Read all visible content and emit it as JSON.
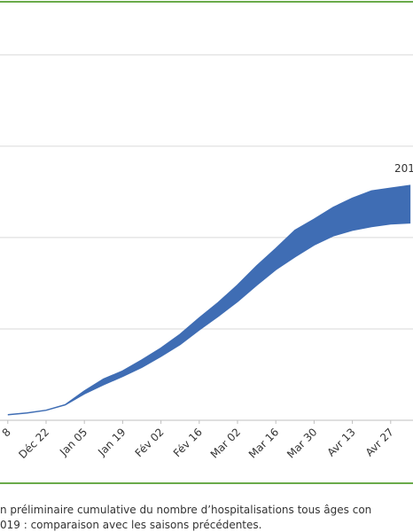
{
  "chart_data": {
    "type": "range_area",
    "color": "#3f6db4",
    "categories": [
      "8",
      null,
      "Déc 22",
      null,
      "Jan 05",
      null,
      "Jan 19",
      null,
      "Fév 02",
      null,
      "Fév 16",
      null,
      "Mar 02",
      null,
      "Mar 16",
      null,
      "Mar 30",
      null,
      "Avr 13",
      null,
      "Avr 27",
      null
    ],
    "lower": [
      0.06,
      0.08,
      0.11,
      0.17,
      0.29,
      0.39,
      0.48,
      0.58,
      0.7,
      0.83,
      0.99,
      1.14,
      1.3,
      1.48,
      1.65,
      1.79,
      1.92,
      2.02,
      2.08,
      2.12,
      2.15,
      2.16
    ],
    "upper": [
      0.06,
      0.08,
      0.11,
      0.17,
      0.32,
      0.45,
      0.54,
      0.66,
      0.79,
      0.94,
      1.12,
      1.29,
      1.48,
      1.69,
      1.88,
      2.08,
      2.2,
      2.33,
      2.43,
      2.51,
      2.54,
      2.57
    ],
    "ylim": [
      0,
      4.6
    ],
    "ygrid": [
      1,
      2,
      3,
      4
    ],
    "grid": true,
    "annotation": "201",
    "caption": [
      "n préliminaire cumulative du nombre d’hospitalisations tous âges con",
      "019 : comparaison avec les saisons précédentes."
    ]
  }
}
